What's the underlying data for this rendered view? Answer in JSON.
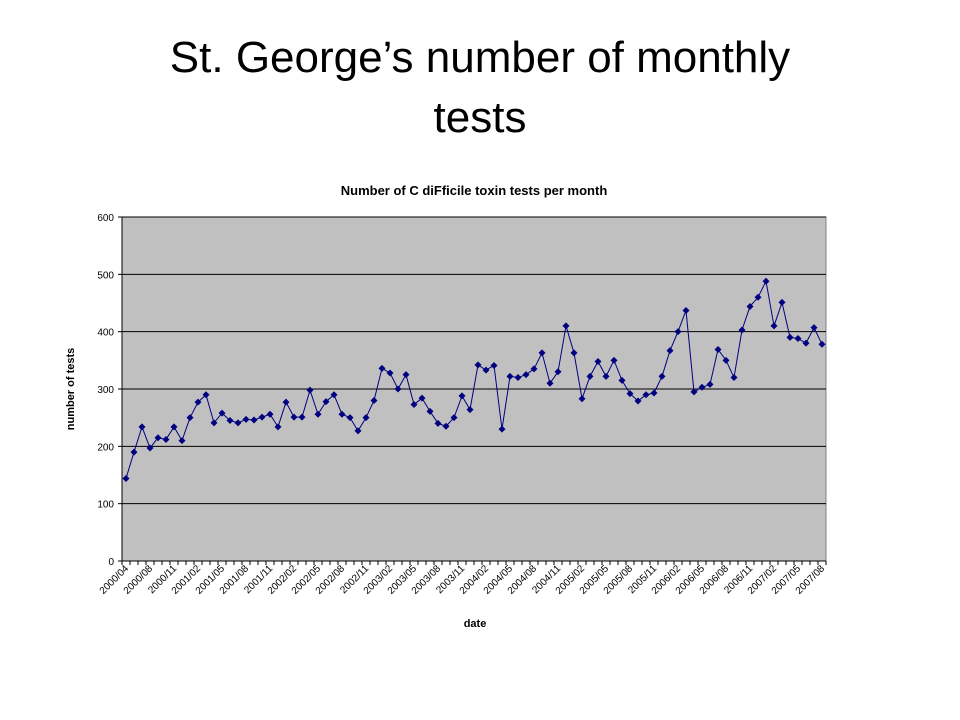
{
  "header": {
    "title": "St. George’s number of monthly tests"
  },
  "chart_data": {
    "type": "line",
    "title": "Number of C diFficile toxin tests per month",
    "x_label": "date",
    "y_label": "number of tests",
    "categories": [
      "2000/04",
      null,
      null,
      "2000/08",
      null,
      null,
      "2000/11",
      null,
      null,
      "2001/02",
      null,
      null,
      "2001/05",
      null,
      null,
      "2001/08",
      null,
      null,
      "2001/11",
      null,
      null,
      "2002/02",
      null,
      null,
      "2002/05",
      null,
      null,
      "2002/08",
      null,
      null,
      "2002/11",
      null,
      null,
      "2003/02",
      null,
      null,
      "2003/05",
      null,
      null,
      "2003/08",
      null,
      null,
      "2003/11",
      null,
      null,
      "2004/02",
      null,
      null,
      "2004/05",
      null,
      null,
      "2004/08",
      null,
      null,
      "2004/11",
      null,
      null,
      "2005/02",
      null,
      null,
      "2005/05",
      null,
      null,
      "2005/08",
      null,
      null,
      "2005/11",
      null,
      null,
      "2006/02",
      null,
      null,
      "2006/05",
      null,
      null,
      "2006/08",
      null,
      null,
      "2006/11",
      null,
      null,
      "2007/02",
      null,
      null,
      "2007/05",
      null,
      null,
      "2007/08"
    ],
    "values": [
      144,
      190,
      234,
      197,
      215,
      212,
      234,
      210,
      250,
      277,
      290,
      241,
      258,
      245,
      241,
      247,
      246,
      251,
      256,
      234,
      277,
      251,
      251,
      298,
      256,
      278,
      290,
      256,
      250,
      227,
      250,
      280,
      336,
      328,
      300,
      325,
      273,
      284,
      261,
      240,
      235,
      250,
      288,
      264,
      342,
      333,
      341,
      230,
      322,
      320,
      325,
      335,
      363,
      310,
      330,
      410,
      363,
      283,
      322,
      348,
      322,
      350,
      315,
      292,
      279,
      290,
      293,
      322,
      367,
      400,
      437,
      295,
      303,
      308,
      369,
      350,
      320,
      403,
      444,
      460,
      488,
      410,
      451,
      390,
      388,
      380,
      407,
      378
    ],
    "color": "#000080",
    "plot_background": "#c0c0c0",
    "ylim": [
      0,
      600
    ],
    "yticks": [
      0,
      100,
      200,
      300,
      400,
      500,
      600
    ],
    "grid": true
  }
}
